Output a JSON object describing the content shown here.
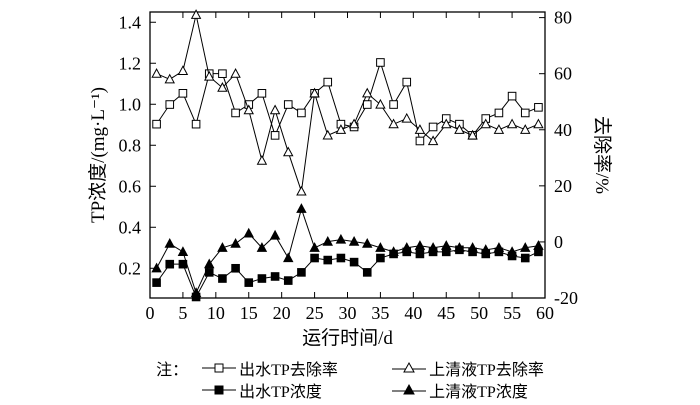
{
  "chart_data": {
    "type": "line",
    "title": "",
    "xlabel": "运行时间/d",
    "ylabel_left": "TP浓度/(mg·L⁻¹)",
    "ylabel_right": "去除率/%",
    "xlim": [
      0,
      60
    ],
    "left_lim": [
      0.055,
      1.45
    ],
    "right_lim": [
      -20,
      82
    ],
    "x_ticks": [
      0,
      5,
      10,
      15,
      20,
      25,
      30,
      35,
      40,
      45,
      50,
      55,
      60
    ],
    "left_ticks": [
      0.2,
      0.4,
      0.6,
      0.8,
      1.0,
      1.2,
      1.4
    ],
    "right_ticks": [
      -20,
      0,
      20,
      40,
      60,
      80
    ],
    "grid": false,
    "legend_position": "bottom",
    "legend_prefix": "注：",
    "x": [
      1,
      3,
      5,
      7,
      9,
      11,
      13,
      15,
      17,
      19,
      21,
      23,
      25,
      27,
      29,
      31,
      33,
      35,
      37,
      39,
      41,
      43,
      45,
      47,
      49,
      51,
      53,
      55,
      57,
      59
    ],
    "series": [
      {
        "name": "出水TP去除率",
        "axis": "right",
        "unit": "%",
        "marker": "open-square",
        "values": [
          42,
          49,
          53,
          42,
          60,
          60,
          46,
          49,
          53,
          38,
          49,
          46,
          53,
          57,
          42,
          41,
          49,
          64,
          49,
          57,
          36,
          41,
          44,
          42,
          38,
          44,
          46,
          52,
          46,
          48
        ]
      },
      {
        "name": "上清液TP去除率",
        "axis": "right",
        "unit": "%",
        "marker": "open-triangle",
        "values": [
          60,
          58,
          61,
          81,
          59,
          55,
          60,
          47,
          29,
          47,
          32,
          18,
          53,
          38,
          40,
          42,
          53,
          49,
          42,
          44,
          40,
          36,
          42,
          40,
          38,
          42,
          40,
          42,
          40,
          42
        ]
      },
      {
        "name": "出水TP浓度",
        "axis": "left",
        "unit": "mg·L⁻¹",
        "marker": "filled-square",
        "values": [
          0.13,
          0.22,
          0.22,
          0.06,
          0.18,
          0.15,
          0.2,
          0.13,
          0.15,
          0.16,
          0.14,
          0.18,
          0.25,
          0.24,
          0.25,
          0.23,
          0.18,
          0.25,
          0.27,
          0.28,
          0.27,
          0.28,
          0.28,
          0.29,
          0.28,
          0.27,
          0.28,
          0.26,
          0.25,
          0.28
        ]
      },
      {
        "name": "上清液TP浓度",
        "axis": "left",
        "unit": "mg·L⁻¹",
        "marker": "filled-triangle",
        "values": [
          0.2,
          0.32,
          0.28,
          0.08,
          0.22,
          0.3,
          0.32,
          0.37,
          0.3,
          0.36,
          0.25,
          0.49,
          0.3,
          0.33,
          0.34,
          0.33,
          0.32,
          0.3,
          0.28,
          0.3,
          0.31,
          0.3,
          0.31,
          0.3,
          0.3,
          0.29,
          0.3,
          0.28,
          0.3,
          0.31
        ]
      }
    ]
  }
}
